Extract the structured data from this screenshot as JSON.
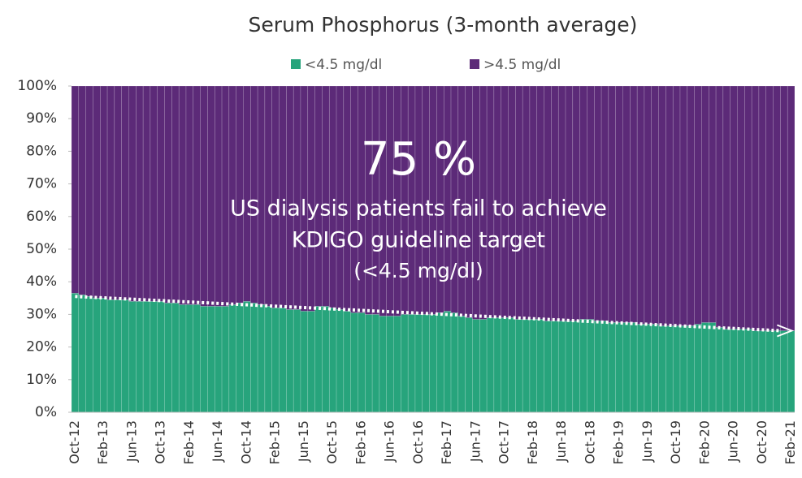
{
  "chart_data": {
    "type": "stacked_bar",
    "title": "Serum Phosphorus (3-month average)",
    "categories": [
      "Oct-12",
      null,
      null,
      null,
      "Feb-13",
      null,
      null,
      null,
      "Jun-13",
      null,
      null,
      null,
      "Oct-13",
      null,
      null,
      null,
      "Feb-14",
      null,
      null,
      null,
      "Jun-14",
      null,
      null,
      null,
      "Oct-14",
      null,
      null,
      null,
      "Feb-15",
      null,
      null,
      null,
      "Jun-15",
      null,
      null,
      null,
      "Oct-15",
      null,
      null,
      null,
      "Feb-16",
      null,
      null,
      null,
      "Jun-16",
      null,
      null,
      null,
      "Oct-16",
      null,
      null,
      null,
      "Feb-17",
      null,
      null,
      null,
      "Jun-17",
      null,
      null,
      null,
      "Oct-17",
      null,
      null,
      null,
      "Feb-18",
      null,
      null,
      null,
      "Jun-18",
      null,
      null,
      null,
      "Oct-18",
      null,
      null,
      null,
      "Feb-19",
      null,
      null,
      null,
      "Jun-19",
      null,
      null,
      null,
      "Oct-19",
      null,
      null,
      null,
      "Feb-20",
      null,
      null,
      null,
      "Jun-20",
      null,
      null,
      null,
      "Oct-20",
      null,
      null,
      null,
      "Feb-21"
    ],
    "series": [
      {
        "name": "<4.5 mg/dl",
        "color": "#27a47c",
        "values": [
          36.5,
          36,
          35.5,
          35,
          35,
          34.5,
          34.5,
          34.5,
          34,
          34,
          34,
          34,
          34,
          33.5,
          33.5,
          33,
          33,
          33,
          32.5,
          32.5,
          32.5,
          32.5,
          33,
          33.5,
          34,
          33.5,
          33,
          32.5,
          32,
          32,
          31.5,
          31.5,
          31,
          31,
          32.5,
          32.5,
          32,
          31.5,
          31,
          30.5,
          30.5,
          30,
          30,
          29.5,
          29.5,
          29.5,
          30,
          30,
          30,
          30,
          30,
          30.5,
          31,
          30.5,
          29.5,
          29,
          28.5,
          28.5,
          29,
          29,
          29,
          29,
          28.5,
          28.5,
          28.5,
          28.5,
          28,
          28,
          28,
          28,
          28,
          28.5,
          28.5,
          28,
          28,
          27.5,
          27.5,
          27.5,
          27.5,
          27,
          27,
          27,
          26.5,
          26.5,
          26.5,
          26.5,
          26.5,
          27,
          27.5,
          27.5,
          26,
          25.5,
          25.5,
          25.5,
          25.5,
          25,
          25,
          25,
          25,
          25,
          25
        ]
      },
      {
        "name": ">4.5 mg/dl",
        "color": "#5c2a78",
        "values": [
          63.5,
          64,
          64.5,
          65,
          65,
          65.5,
          65.5,
          65.5,
          66,
          66,
          66,
          66,
          66,
          66.5,
          66.5,
          67,
          67,
          67,
          67.5,
          67.5,
          67.5,
          67.5,
          67,
          66.5,
          66,
          66.5,
          67,
          67.5,
          68,
          68,
          68.5,
          68.5,
          69,
          69,
          67.5,
          67.5,
          68,
          68.5,
          69,
          69.5,
          69.5,
          70,
          70,
          70.5,
          70.5,
          70.5,
          70,
          70,
          70,
          70,
          70,
          69.5,
          69,
          69.5,
          70.5,
          71,
          71.5,
          71.5,
          71,
          71,
          71,
          71,
          71.5,
          71.5,
          71.5,
          71.5,
          72,
          72,
          72,
          72,
          72,
          71.5,
          71.5,
          72,
          72,
          72.5,
          72.5,
          72.5,
          72.5,
          73,
          73,
          73,
          73.5,
          73.5,
          73.5,
          73.5,
          73.5,
          73,
          72.5,
          72.5,
          74,
          74.5,
          74.5,
          74.5,
          74.5,
          75,
          75,
          75,
          75,
          75,
          75
        ]
      }
    ],
    "trend": [
      35.5,
      25
    ],
    "annotations": [
      "75 %",
      "US dialysis patients fail to achieve",
      "KDIGO guideline target",
      "(<4.5 mg/dl)"
    ],
    "ylim": [
      0,
      100
    ],
    "yticks": [
      {
        "value": 0,
        "label": "0%"
      },
      {
        "value": 10,
        "label": "10%"
      },
      {
        "value": 20,
        "label": "20%"
      },
      {
        "value": 30,
        "label": "30%"
      },
      {
        "value": 40,
        "label": "40%"
      },
      {
        "value": 50,
        "label": "50%"
      },
      {
        "value": 60,
        "label": "60%"
      },
      {
        "value": 70,
        "label": "70%"
      },
      {
        "value": 80,
        "label": "80%"
      },
      {
        "value": 90,
        "label": "90%"
      },
      {
        "value": 100,
        "label": "100%"
      }
    ],
    "legend": "top"
  }
}
